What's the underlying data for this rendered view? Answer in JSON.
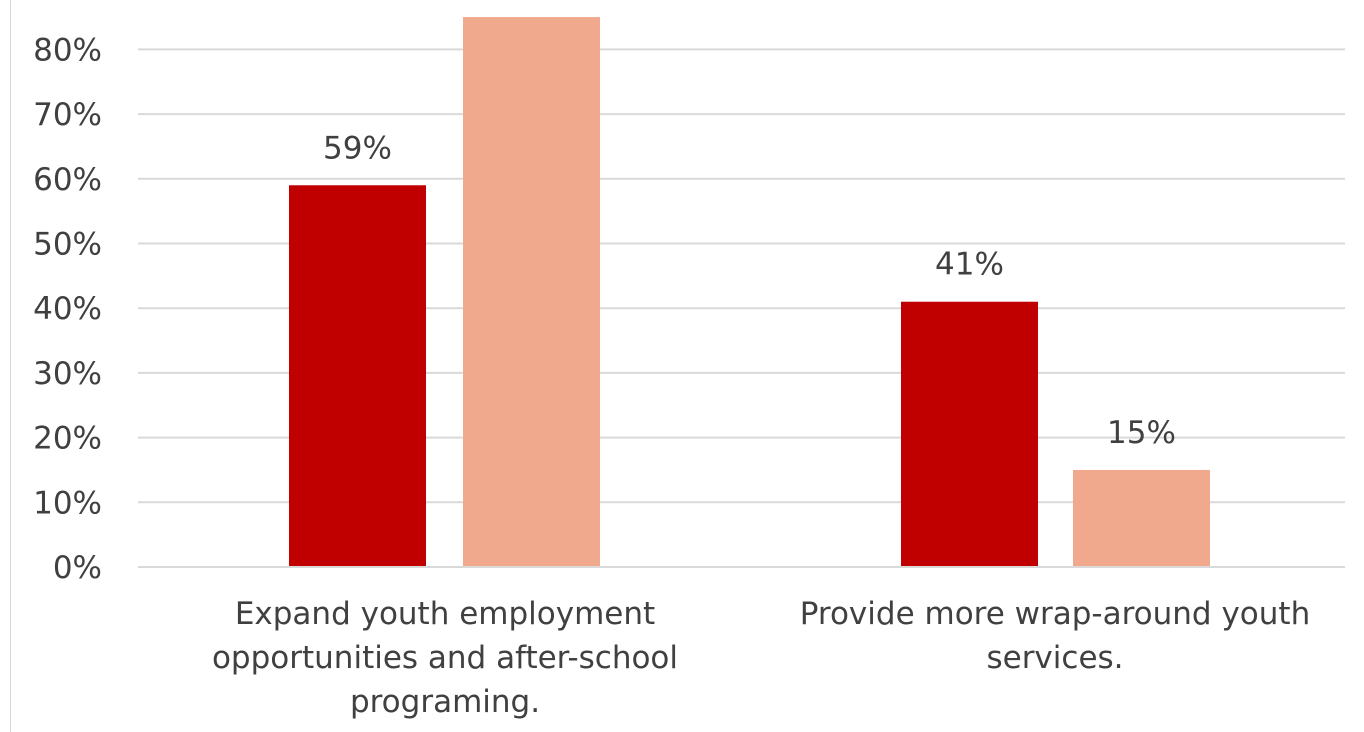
{
  "chart_data": {
    "type": "bar",
    "categories": [
      "Expand youth employment opportunities and after-school programing.",
      "Provide more wrap-around youth services."
    ],
    "series": [
      {
        "values": [
          59,
          41
        ],
        "color": "#c00000"
      },
      {
        "values": [
          85,
          15
        ],
        "color": "#f0a98c"
      }
    ],
    "data_labels": [
      [
        "59%",
        "41%"
      ],
      [
        "",
        "15%"
      ]
    ],
    "y_ticks": [
      "0%",
      "10%",
      "20%",
      "30%",
      "40%",
      "50%",
      "60%",
      "70%",
      "80%"
    ],
    "ylim": [
      0,
      85
    ],
    "grid": true,
    "legend": "none",
    "title": "",
    "xlabel": "",
    "ylabel": ""
  }
}
